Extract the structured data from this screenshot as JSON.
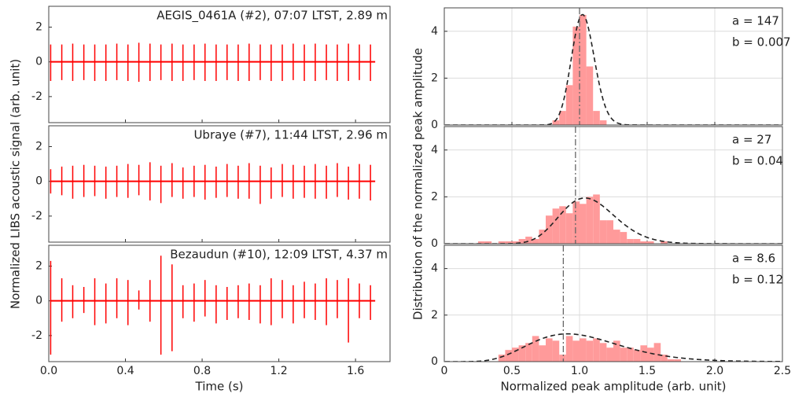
{
  "chart_data": [
    {
      "type": "line",
      "title": "AEGIS_0461A (#2), 07:07 LTST, 2.89 m",
      "ylabel": "Normalized LIBS acoustic signal (arb. unit)",
      "color": "#ff0000",
      "baseline": 0,
      "grid": false,
      "xtick_labels": false,
      "xlim": [
        0,
        1.78
      ],
      "ylim": [
        -3.5,
        3.2
      ],
      "xticks": [
        {
          "value": 0,
          "label": "0.0"
        },
        0.4,
        0.8,
        1.2,
        1.6
      ],
      "yticks": [
        -2,
        0,
        2
      ],
      "x": [
        0.01,
        0.068,
        0.125,
        0.183,
        0.24,
        0.298,
        0.355,
        0.413,
        0.47,
        0.528,
        0.585,
        0.643,
        0.7,
        0.758,
        0.815,
        0.873,
        0.93,
        0.988,
        1.045,
        1.103,
        1.16,
        1.218,
        1.275,
        1.333,
        1.39,
        1.448,
        1.505,
        1.563,
        1.62,
        1.678
      ],
      "max": [
        1.0,
        1.0,
        1.05,
        1.0,
        1.0,
        1.0,
        1.05,
        1.0,
        1.1,
        1.05,
        1.0,
        1.05,
        1.0,
        1.0,
        1.05,
        1.0,
        1.0,
        1.0,
        1.05,
        1.0,
        1.0,
        1.0,
        1.05,
        1.0,
        1.05,
        1.0,
        1.0,
        1.05,
        1.0,
        1.0
      ],
      "min": [
        -1.1,
        -1.05,
        -1.1,
        -1.05,
        -1.1,
        -1.1,
        -1.05,
        -1.1,
        -1.15,
        -1.1,
        -1.05,
        -1.1,
        -1.1,
        -1.05,
        -1.1,
        -1.1,
        -1.05,
        -1.1,
        -1.1,
        -1.05,
        -1.1,
        -1.1,
        -1.05,
        -1.1,
        -1.1,
        -1.05,
        -1.1,
        -1.1,
        -1.05,
        -1.1
      ]
    },
    {
      "type": "line",
      "title": "Ubraye (#7), 11:44 LTST, 2.96 m",
      "color": "#ff0000",
      "baseline": 0,
      "grid": false,
      "xtick_labels": false,
      "xlim": [
        0,
        1.78
      ],
      "ylim": [
        -3.5,
        3.2
      ],
      "xticks": [
        {
          "value": 0,
          "label": "0.0"
        },
        0.4,
        0.8,
        1.2,
        1.6
      ],
      "yticks": [
        -2,
        0,
        2
      ],
      "x": [
        0.01,
        0.068,
        0.125,
        0.183,
        0.24,
        0.298,
        0.355,
        0.413,
        0.47,
        0.528,
        0.585,
        0.643,
        0.7,
        0.758,
        0.815,
        0.873,
        0.93,
        0.988,
        1.045,
        1.103,
        1.16,
        1.218,
        1.275,
        1.333,
        1.39,
        1.448,
        1.505,
        1.563,
        1.62,
        1.678
      ],
      "max": [
        0.7,
        0.85,
        0.9,
        0.95,
        0.9,
        0.85,
        0.9,
        1.0,
        0.95,
        1.1,
        0.9,
        1.05,
        0.8,
        0.9,
        0.95,
        0.85,
        1.0,
        0.9,
        1.05,
        0.9,
        0.8,
        1.0,
        0.95,
        0.9,
        1.0,
        0.9,
        1.05,
        0.85,
        1.0,
        0.95
      ],
      "min": [
        -0.7,
        -0.8,
        -1.0,
        -0.9,
        -0.85,
        -1.0,
        -0.9,
        -0.95,
        -0.8,
        -1.1,
        -1.25,
        -0.9,
        -1.0,
        -0.9,
        -1.05,
        -0.95,
        -0.9,
        -1.0,
        -1.0,
        -1.3,
        -1.0,
        -0.9,
        -1.0,
        -0.95,
        -1.0,
        -1.0,
        -0.9,
        -1.05,
        -1.0,
        -1.1
      ]
    },
    {
      "type": "line",
      "title": "Bezaudun (#10), 12:09 LTST, 4.37 m",
      "xlabel": "Time (s)",
      "color": "#ff0000",
      "baseline": 0,
      "grid": false,
      "xtick_labels": true,
      "xlim": [
        0,
        1.78
      ],
      "ylim": [
        -3.5,
        3.2
      ],
      "xticks": [
        {
          "value": 0,
          "label": "0.0"
        },
        0.4,
        0.8,
        1.2,
        1.6
      ],
      "yticks": [
        -2,
        0,
        2
      ],
      "x": [
        0.01,
        0.068,
        0.125,
        0.183,
        0.24,
        0.298,
        0.355,
        0.413,
        0.47,
        0.528,
        0.585,
        0.643,
        0.7,
        0.758,
        0.815,
        0.873,
        0.93,
        0.988,
        1.045,
        1.103,
        1.16,
        1.218,
        1.275,
        1.333,
        1.39,
        1.448,
        1.505,
        1.563,
        1.62,
        1.678
      ],
      "max": [
        2.3,
        1.3,
        0.9,
        0.8,
        1.3,
        1.0,
        1.3,
        1.2,
        0.6,
        1.2,
        2.6,
        2.1,
        0.9,
        1.0,
        1.2,
        0.9,
        0.8,
        0.9,
        1.0,
        0.9,
        1.3,
        1.2,
        0.9,
        1.1,
        1.0,
        1.3,
        1.2,
        1.3,
        1.0,
        0.9
      ],
      "min": [
        -3.1,
        -1.2,
        -1.0,
        -0.7,
        -1.4,
        -1.3,
        -1.0,
        -1.4,
        -0.5,
        -1.2,
        -3.1,
        -2.9,
        -1.0,
        -1.2,
        -0.9,
        -1.3,
        -1.1,
        -1.0,
        -1.1,
        -1.3,
        -1.4,
        -1.0,
        -1.3,
        -1.0,
        -1.1,
        -1.4,
        -1.0,
        -2.4,
        -1.0,
        -1.1
      ]
    },
    {
      "type": "histogram",
      "ylabel": "Distribution of the normalized peak amplitude",
      "annotations": [
        "a = 147",
        "b = 0.007"
      ],
      "a": 147,
      "b": 0.007,
      "vline": 1.0,
      "color": "#ff9a9a",
      "grid": true,
      "xtick_labels": false,
      "xlim": [
        0,
        2.5
      ],
      "ylim": [
        0,
        5
      ],
      "xticks": [
        0,
        0.5,
        {
          "value": 1,
          "label": "1.0"
        },
        1.5,
        {
          "value": 2,
          "label": "2.0"
        },
        2.5
      ],
      "yticks": [
        0,
        2,
        4
      ],
      "bins": [
        0.8,
        0.85,
        0.9,
        0.95,
        1.0,
        1.05,
        1.1,
        1.15,
        1.2
      ],
      "values": [
        0.2,
        0.6,
        1.7,
        4.2,
        4.7,
        2.5,
        0.6,
        0.2
      ]
    },
    {
      "type": "histogram",
      "annotations": [
        "a = 27",
        "b = 0.04"
      ],
      "a": 27,
      "b": 0.04,
      "vline": 0.97,
      "color": "#ff9a9a",
      "grid": true,
      "xtick_labels": false,
      "xlim": [
        0,
        2.5
      ],
      "ylim": [
        0,
        5
      ],
      "xticks": [
        0,
        0.5,
        {
          "value": 1,
          "label": "1.0"
        },
        1.5,
        {
          "value": 2,
          "label": "2.0"
        },
        2.5
      ],
      "yticks": [
        0,
        2,
        4
      ],
      "bins": [
        0.25,
        0.3,
        0.35,
        0.4,
        0.45,
        0.5,
        0.55,
        0.6,
        0.65,
        0.7,
        0.75,
        0.8,
        0.85,
        0.9,
        0.95,
        1.0,
        1.05,
        1.1,
        1.15,
        1.2,
        1.25,
        1.3,
        1.35,
        1.4,
        1.45,
        1.5,
        1.55,
        1.6,
        1.65
      ],
      "values": [
        0.1,
        0.1,
        0,
        0.1,
        0.1,
        0.1,
        0.2,
        0.3,
        0.2,
        0.6,
        1.2,
        1.5,
        1.6,
        1.3,
        1.8,
        1.7,
        2.0,
        2.1,
        1.0,
        1.0,
        0.6,
        0.5,
        0.2,
        0.2,
        0.1,
        0.1,
        0,
        0.1
      ]
    },
    {
      "type": "histogram",
      "xlabel": "Normalized peak amplitude (arb. unit)",
      "annotations": [
        "a = 8.6",
        "b = 0.12"
      ],
      "a": 8.6,
      "b": 0.12,
      "vline": 0.88,
      "color": "#ff9a9a",
      "grid": true,
      "xtick_labels": true,
      "xlim": [
        0,
        2.5
      ],
      "ylim": [
        0,
        5
      ],
      "xticks": [
        0,
        0.5,
        {
          "value": 1,
          "label": "1.0"
        },
        1.5,
        {
          "value": 2,
          "label": "2.0"
        },
        2.5
      ],
      "yticks": [
        0,
        2,
        4
      ],
      "bins": [
        0.4,
        0.45,
        0.5,
        0.55,
        0.6,
        0.65,
        0.7,
        0.75,
        0.8,
        0.85,
        0.9,
        0.95,
        1.0,
        1.05,
        1.1,
        1.15,
        1.2,
        1.25,
        1.3,
        1.35,
        1.4,
        1.45,
        1.5,
        1.55,
        1.6,
        1.65,
        1.7,
        1.75
      ],
      "values": [
        0.3,
        0.5,
        0.6,
        0.7,
        0.8,
        1.1,
        0.7,
        1.0,
        0.9,
        0.3,
        1.1,
        0.9,
        1.0,
        0.9,
        1.0,
        0.8,
        0.6,
        0.9,
        0.6,
        0.6,
        0.5,
        0.7,
        0.6,
        0.8,
        0.3,
        0.1,
        0.1
      ]
    }
  ]
}
